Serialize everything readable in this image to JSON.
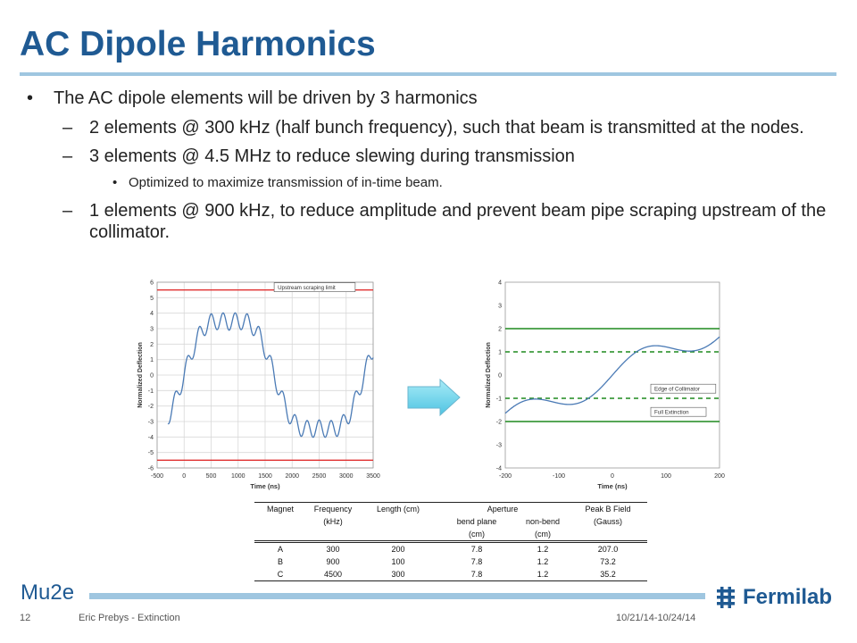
{
  "title": "AC Dipole Harmonics",
  "bullets": [
    {
      "level": 1,
      "marker": "•",
      "text": "The AC dipole elements will be driven by 3 harmonics"
    },
    {
      "level": 2,
      "marker": "–",
      "text": "2 elements @ 300 kHz (half bunch frequency), such that beam is transmitted at the nodes."
    },
    {
      "level": 2,
      "marker": "–",
      "text": "3 elements @ 4.5 MHz to reduce slewing during transmission"
    },
    {
      "level": 3,
      "marker": "•",
      "text": "Optimized to maximize transmission of in-time beam."
    },
    {
      "level": 2,
      "marker": "–",
      "text": "1 elements @ 900 kHz, to reduce amplitude and prevent beam pipe scraping upstream of the collimator."
    }
  ],
  "chart_data": [
    {
      "type": "line",
      "xlabel": "Time (ns)",
      "ylabel": "Normalized Deflection",
      "xlim": [
        -500,
        3500
      ],
      "ylim": [
        -6,
        6
      ],
      "xticks": [
        "-500",
        "0",
        "500",
        "1000",
        "1500",
        "2000",
        "2500",
        "3000",
        "3500"
      ],
      "yticks": [
        "-6",
        "-5",
        "-4",
        "-3",
        "-2",
        "-1",
        "0",
        "1",
        "2",
        "3",
        "4",
        "5",
        "6"
      ],
      "grid": true,
      "hlines": [
        {
          "y": 5.5,
          "color": "#e03030",
          "style": "solid"
        },
        {
          "y": -5.5,
          "color": "#e03030",
          "style": "solid"
        }
      ],
      "annotations": [
        {
          "text": "Upstream scraping limit",
          "x": 1700,
          "y": 5.5
        }
      ],
      "series": [
        {
          "color": "#4a7ab5",
          "harmonics": [
            {
              "freq_khz": 300,
              "amp": 4.0
            },
            {
              "freq_khz": 900,
              "amp": 0.55
            },
            {
              "freq_khz": 4500,
              "amp": 0.55
            }
          ],
          "x_range": [
            -300,
            3500
          ]
        }
      ]
    },
    {
      "type": "line",
      "xlabel": "Time (ns)",
      "ylabel": "Normalized Deflection",
      "xlim": [
        -200,
        200
      ],
      "ylim": [
        -4,
        4
      ],
      "xticks": [
        "-200",
        "-100",
        "0",
        "100",
        "200"
      ],
      "yticks": [
        "-4",
        "-3",
        "-2",
        "-1",
        "0",
        "1",
        "2",
        "3",
        "4"
      ],
      "grid": false,
      "hlines": [
        {
          "y": 2,
          "color": "#1e8a1e",
          "style": "solid"
        },
        {
          "y": 1,
          "color": "#1e8a1e",
          "style": "dashed"
        },
        {
          "y": -1,
          "color": "#1e8a1e",
          "style": "dashed"
        },
        {
          "y": -2,
          "color": "#1e8a1e",
          "style": "solid"
        }
      ],
      "annotations": [
        {
          "text": "Edge of Collimator",
          "x": 75,
          "y": -0.7
        },
        {
          "text": "Full Extinction",
          "x": 75,
          "y": -1.7
        }
      ],
      "series": [
        {
          "color": "#4a7ab5",
          "harmonics": [
            {
              "freq_khz": 300,
              "amp": 4.0
            },
            {
              "freq_khz": 900,
              "amp": 0.55
            },
            {
              "freq_khz": 4500,
              "amp": 0.55
            }
          ],
          "x_range": [
            -200,
            200
          ]
        }
      ]
    }
  ],
  "table": {
    "header1": [
      "Magnet",
      "Frequency",
      "Length (cm)",
      "Aperture",
      "Peak B Field"
    ],
    "header2": [
      "(kHz)",
      "bend plane",
      "non-bend",
      "(Gauss)"
    ],
    "header3": [
      "(cm)",
      "(cm)"
    ],
    "rows": [
      [
        "A",
        "300",
        "200",
        "7.8",
        "1.2",
        "207.0"
      ],
      [
        "B",
        "900",
        "100",
        "7.8",
        "1.2",
        "73.2"
      ],
      [
        "C",
        "4500",
        "300",
        "7.8",
        "1.2",
        "35.2"
      ]
    ]
  },
  "footer": {
    "brand": "Mu2e",
    "logo": "Fermilab",
    "page": "12",
    "author": "Eric Prebys - Extinction",
    "date": "10/21/14-10/24/14"
  },
  "colors": {
    "title": "#1f5a93",
    "rule": "#9fc6e0",
    "curve": "#4a7ab5",
    "limit_red": "#e03030",
    "limit_green": "#1e8a1e"
  }
}
